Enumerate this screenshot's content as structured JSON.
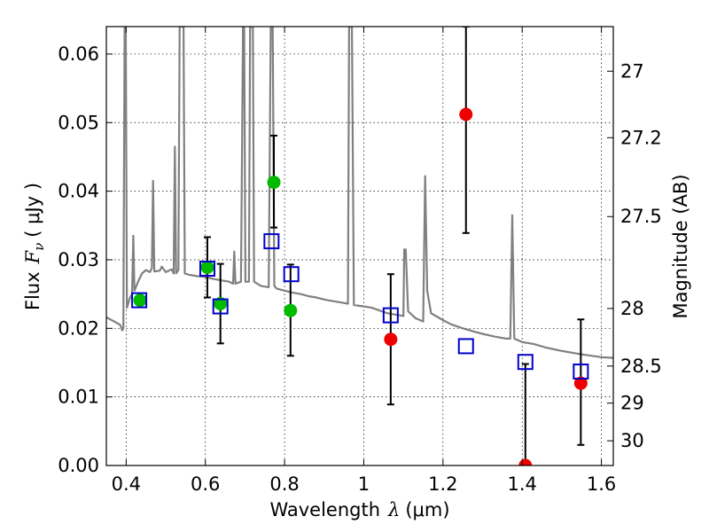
{
  "chart_data": {
    "type": "scatter",
    "xlabel": {
      "prefix": "Wavelength",
      "symbol": "λ",
      "unit": "(μm)"
    },
    "ylabel": {
      "prefix": "Flux",
      "symbol": "F",
      "subscript": "ν",
      "unit": "( μJy )"
    },
    "ylabel_right": "Magnitude (AB)",
    "xlim": [
      0.35,
      1.63
    ],
    "ylim": [
      0.0,
      0.064
    ],
    "x_ticks": [
      0.4,
      0.6,
      0.8,
      1.0,
      1.2,
      1.4,
      1.6
    ],
    "x_tick_labels": [
      "0.4",
      "0.6",
      "0.8",
      "1",
      "1.2",
      "1.4",
      "1.6"
    ],
    "y_ticks": [
      0.0,
      0.01,
      0.02,
      0.03,
      0.04,
      0.05,
      0.06
    ],
    "y_tick_labels": [
      "0.00",
      "0.01",
      "0.02",
      "0.03",
      "0.04",
      "0.05",
      "0.06"
    ],
    "right_ticks": [
      {
        "label": "27",
        "flux": 0.0575
      },
      {
        "label": "27.2",
        "flux": 0.0478
      },
      {
        "label": "27.5",
        "flux": 0.0363
      },
      {
        "label": "28",
        "flux": 0.0229
      },
      {
        "label": "28.5",
        "flux": 0.0145
      },
      {
        "label": "29",
        "flux": 0.0091
      },
      {
        "label": "30",
        "flux": 0.0036
      }
    ],
    "grid": true,
    "colors": {
      "template": "#808080",
      "model": "#0000cc",
      "detection": "#00bb00",
      "measurement": "#ee0000",
      "errorbar": "#000000"
    },
    "series": [
      {
        "kind": "line",
        "color": "#808080",
        "points": [
          [
            0.35,
            0.0216
          ],
          [
            0.37,
            0.021
          ],
          [
            0.385,
            0.0205
          ],
          [
            0.39,
            0.0197
          ],
          [
            0.393,
            0.02
          ],
          [
            0.396,
            0.064
          ],
          [
            0.399,
            0.064
          ],
          [
            0.402,
            0.023
          ],
          [
            0.41,
            0.0245
          ],
          [
            0.415,
            0.025
          ],
          [
            0.418,
            0.0335
          ],
          [
            0.421,
            0.0255
          ],
          [
            0.43,
            0.0268
          ],
          [
            0.44,
            0.028
          ],
          [
            0.45,
            0.0285
          ],
          [
            0.46,
            0.0282
          ],
          [
            0.465,
            0.0288
          ],
          [
            0.468,
            0.0415
          ],
          [
            0.471,
            0.0283
          ],
          [
            0.485,
            0.0284
          ],
          [
            0.49,
            0.029
          ],
          [
            0.5,
            0.0282
          ],
          [
            0.515,
            0.0286
          ],
          [
            0.52,
            0.028
          ],
          [
            0.523,
            0.0465
          ],
          [
            0.526,
            0.028
          ],
          [
            0.532,
            0.0285
          ],
          [
            0.535,
            0.064
          ],
          [
            0.545,
            0.064
          ],
          [
            0.548,
            0.028
          ],
          [
            0.56,
            0.0278
          ],
          [
            0.58,
            0.0276
          ],
          [
            0.6,
            0.0275
          ],
          [
            0.62,
            0.0272
          ],
          [
            0.64,
            0.027
          ],
          [
            0.66,
            0.0268
          ],
          [
            0.67,
            0.0265
          ],
          [
            0.673,
            0.0312
          ],
          [
            0.676,
            0.0265
          ],
          [
            0.69,
            0.0268
          ],
          [
            0.695,
            0.064
          ],
          [
            0.698,
            0.064
          ],
          [
            0.701,
            0.0268
          ],
          [
            0.71,
            0.0268
          ],
          [
            0.713,
            0.064
          ],
          [
            0.72,
            0.064
          ],
          [
            0.723,
            0.0268
          ],
          [
            0.74,
            0.0262
          ],
          [
            0.76,
            0.026
          ],
          [
            0.765,
            0.064
          ],
          [
            0.77,
            0.064
          ],
          [
            0.774,
            0.0262
          ],
          [
            0.78,
            0.0258
          ],
          [
            0.8,
            0.0255
          ],
          [
            0.82,
            0.0252
          ],
          [
            0.84,
            0.025
          ],
          [
            0.86,
            0.0247
          ],
          [
            0.88,
            0.0245
          ],
          [
            0.9,
            0.0242
          ],
          [
            0.92,
            0.024
          ],
          [
            0.94,
            0.0238
          ],
          [
            0.96,
            0.0236
          ],
          [
            0.963,
            0.064
          ],
          [
            0.97,
            0.064
          ],
          [
            0.975,
            0.0234
          ],
          [
            1.0,
            0.0232
          ],
          [
            1.02,
            0.023
          ],
          [
            1.04,
            0.0226
          ],
          [
            1.06,
            0.0222
          ],
          [
            1.08,
            0.022
          ],
          [
            1.1,
            0.0218
          ],
          [
            1.102,
            0.0315
          ],
          [
            1.106,
            0.0315
          ],
          [
            1.112,
            0.0225
          ],
          [
            1.13,
            0.0215
          ],
          [
            1.15,
            0.021
          ],
          [
            1.155,
            0.0422
          ],
          [
            1.16,
            0.0255
          ],
          [
            1.17,
            0.0222
          ],
          [
            1.2,
            0.0212
          ],
          [
            1.22,
            0.0206
          ],
          [
            1.25,
            0.02
          ],
          [
            1.28,
            0.0195
          ],
          [
            1.3,
            0.0192
          ],
          [
            1.33,
            0.0188
          ],
          [
            1.36,
            0.0185
          ],
          [
            1.37,
            0.0185
          ],
          [
            1.375,
            0.0365
          ],
          [
            1.38,
            0.0185
          ],
          [
            1.4,
            0.018
          ],
          [
            1.43,
            0.0177
          ],
          [
            1.46,
            0.0172
          ],
          [
            1.5,
            0.0167
          ],
          [
            1.55,
            0.0162
          ],
          [
            1.6,
            0.0158
          ],
          [
            1.63,
            0.0157
          ]
        ]
      },
      {
        "kind": "model_squares",
        "name": "",
        "x": [
          0.433,
          0.605,
          0.638,
          0.767,
          0.817,
          1.068,
          1.258,
          1.408,
          1.548
        ],
        "y": [
          0.0241,
          0.0287,
          0.0232,
          0.0327,
          0.0279,
          0.0219,
          0.0174,
          0.0151,
          0.0137
        ]
      },
      {
        "kind": "points",
        "color": "#00bb00",
        "x": [
          0.435,
          0.605,
          0.638,
          0.773,
          0.815
        ],
        "y": [
          0.0241,
          0.0289,
          0.0236,
          0.0413,
          0.0226
        ],
        "yerr_low": [
          null,
          0.0245,
          0.0178,
          0.0347,
          0.016
        ],
        "yerr_high": [
          null,
          0.0333,
          0.0294,
          0.0481,
          0.0293
        ]
      },
      {
        "kind": "points",
        "color": "#ee0000",
        "x": [
          1.068,
          1.258,
          1.408,
          1.548
        ],
        "y": [
          0.0184,
          0.0512,
          0.0,
          0.012
        ],
        "yerr_low": [
          0.0089,
          0.0339,
          0.0,
          0.003
        ],
        "yerr_high": [
          0.0279,
          0.064,
          0.0148,
          0.0213
        ]
      }
    ]
  }
}
